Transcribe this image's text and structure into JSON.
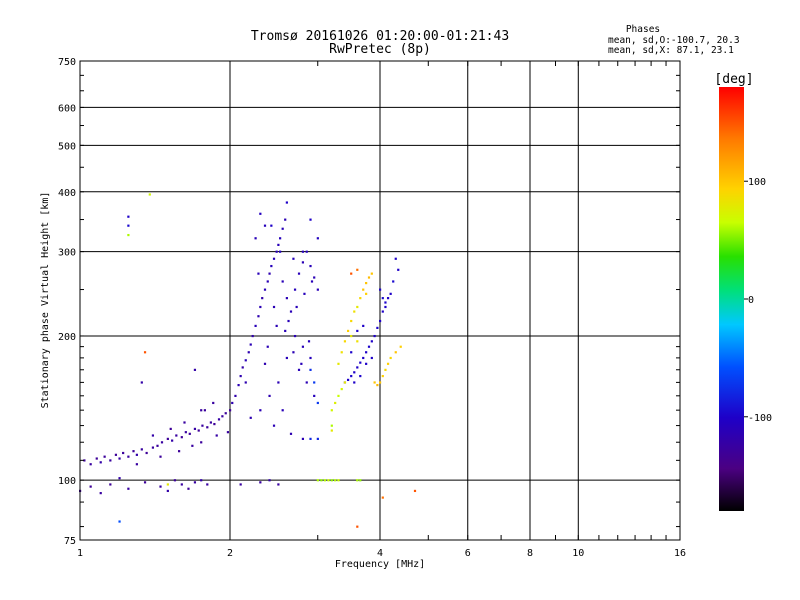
{
  "chart_data": {
    "type": "scatter",
    "title": "Tromsø 20161026 01:20:00-01:21:43",
    "subtitle": "RwPretec (8p)",
    "info": {
      "heading": "Phases",
      "line1": "mean, sd,O:-100.7, 20.3",
      "line2": "mean, sd,X:  87.1, 23.1"
    },
    "xlabel": "Frequency [MHz]",
    "ylabel": "Stationary phase Virtual Height [km]",
    "x_scale": "log",
    "y_scale": "log",
    "xlim": [
      1,
      16
    ],
    "ylim": [
      75,
      750
    ],
    "x_ticks": [
      {
        "value": 1,
        "label": "1"
      },
      {
        "value": 2,
        "label": "2"
      },
      {
        "value": 4,
        "label": "4"
      },
      {
        "value": 6,
        "label": "6"
      },
      {
        "value": 8,
        "label": "8"
      },
      {
        "value": 10,
        "label": "10"
      },
      {
        "value": 16,
        "label": "16"
      }
    ],
    "y_ticks": [
      {
        "value": 75,
        "label": "75"
      },
      {
        "value": 100,
        "label": "100"
      },
      {
        "value": 200,
        "label": "200"
      },
      {
        "value": 300,
        "label": "300"
      },
      {
        "value": 400,
        "label": "400"
      },
      {
        "value": 500,
        "label": "500"
      },
      {
        "value": 600,
        "label": "600"
      },
      {
        "value": 750,
        "label": "750"
      }
    ],
    "grid": true,
    "colorbar": {
      "label": "[deg]",
      "range": [
        -180,
        180
      ],
      "ticks": [
        {
          "value": 100,
          "label": "100"
        },
        {
          "value": 0,
          "label": "0"
        },
        {
          "value": -100,
          "label": "-100"
        }
      ]
    },
    "series": [
      {
        "points": [
          [
            1.02,
            110,
            -130
          ],
          [
            1.05,
            108,
            -125
          ],
          [
            1.08,
            111,
            -130
          ],
          [
            1.1,
            109,
            -120
          ],
          [
            1.12,
            112,
            -128
          ],
          [
            1.15,
            110,
            -125
          ],
          [
            1.18,
            113,
            -130
          ],
          [
            1.2,
            111,
            -122
          ],
          [
            1.22,
            114,
            -128
          ],
          [
            1.25,
            112,
            -125
          ],
          [
            1.28,
            115,
            -130
          ],
          [
            1.3,
            113,
            -120
          ],
          [
            1.33,
            116,
            -125
          ],
          [
            1.36,
            114,
            -130
          ],
          [
            1.4,
            117,
            -125
          ],
          [
            1.43,
            118,
            -128
          ],
          [
            1.46,
            120,
            -125
          ],
          [
            1.5,
            122,
            -130
          ],
          [
            1.53,
            121,
            -120
          ],
          [
            1.56,
            124,
            -125
          ],
          [
            1.6,
            123,
            -130
          ],
          [
            1.63,
            126,
            -125
          ],
          [
            1.66,
            125,
            -128
          ],
          [
            1.7,
            128,
            -122
          ],
          [
            1.73,
            127,
            -130
          ],
          [
            1.76,
            130,
            -125
          ],
          [
            1.8,
            129,
            -128
          ],
          [
            1.83,
            132,
            -125
          ],
          [
            1.86,
            131,
            -130
          ],
          [
            1.9,
            134,
            -122
          ],
          [
            1.93,
            136,
            -125
          ],
          [
            1.96,
            138,
            -128
          ],
          [
            2.0,
            140,
            -130
          ],
          [
            1.3,
            108,
            -125
          ],
          [
            1.45,
            112,
            -128
          ],
          [
            1.58,
            115,
            -130
          ],
          [
            1.68,
            118,
            -125
          ],
          [
            1.75,
            120,
            -128
          ],
          [
            1.88,
            124,
            -122
          ],
          [
            1.98,
            126,
            -125
          ],
          [
            1.62,
            132,
            -125
          ],
          [
            1.78,
            140,
            -128
          ],
          [
            1.52,
            128,
            -130
          ],
          [
            1.85,
            145,
            -125
          ],
          [
            1.4,
            124,
            -120
          ]
        ]
      },
      {
        "points": [
          [
            2.02,
            145,
            -115
          ],
          [
            2.05,
            150,
            -118
          ],
          [
            2.08,
            158,
            -112
          ],
          [
            2.1,
            165,
            -115
          ],
          [
            2.12,
            172,
            -120
          ],
          [
            2.15,
            178,
            -110
          ],
          [
            2.18,
            185,
            -115
          ],
          [
            2.2,
            192,
            -112
          ],
          [
            2.22,
            200,
            -118
          ],
          [
            2.25,
            210,
            -110
          ],
          [
            2.28,
            220,
            -115
          ],
          [
            2.3,
            230,
            -112
          ],
          [
            2.32,
            240,
            -118
          ],
          [
            2.35,
            250,
            -110
          ],
          [
            2.38,
            260,
            -112
          ],
          [
            2.4,
            270,
            -115
          ],
          [
            2.42,
            280,
            -108
          ],
          [
            2.45,
            290,
            -110
          ],
          [
            2.48,
            300,
            -112
          ],
          [
            2.5,
            310,
            -110
          ],
          [
            2.52,
            320,
            -108
          ],
          [
            2.55,
            335,
            -110
          ],
          [
            2.58,
            350,
            -112
          ],
          [
            2.6,
            380,
            -100
          ],
          [
            2.3,
            360,
            -105
          ],
          [
            2.25,
            320,
            -110
          ],
          [
            2.35,
            340,
            -108
          ],
          [
            2.45,
            230,
            -112
          ],
          [
            2.55,
            260,
            -110
          ],
          [
            2.6,
            240,
            -112
          ],
          [
            2.65,
            225,
            -110
          ],
          [
            2.7,
            250,
            -108
          ],
          [
            2.75,
            270,
            -110
          ],
          [
            2.8,
            285,
            -112
          ],
          [
            2.85,
            300,
            -108
          ],
          [
            2.9,
            280,
            -110
          ],
          [
            2.95,
            265,
            -112
          ],
          [
            3.0,
            250,
            -110
          ],
          [
            2.7,
            200,
            -112
          ],
          [
            2.8,
            190,
            -110
          ],
          [
            2.9,
            180,
            -108
          ],
          [
            2.75,
            170,
            -110
          ],
          [
            2.85,
            160,
            -112
          ],
          [
            2.95,
            150,
            -108
          ],
          [
            3.0,
            145,
            -70
          ],
          [
            2.95,
            160,
            -70
          ],
          [
            2.9,
            170,
            -75
          ],
          [
            2.6,
            180,
            -110
          ],
          [
            2.5,
            160,
            -112
          ],
          [
            2.4,
            150,
            -115
          ],
          [
            2.3,
            140,
            -112
          ],
          [
            2.2,
            135,
            -115
          ],
          [
            2.45,
            130,
            -112
          ],
          [
            2.65,
            125,
            -115
          ],
          [
            2.8,
            122,
            -112
          ],
          [
            2.9,
            122,
            -80
          ],
          [
            3.0,
            122,
            -80
          ],
          [
            2.55,
            140,
            -110
          ],
          [
            2.35,
            175,
            -115
          ],
          [
            2.15,
            160,
            -115
          ],
          [
            2.48,
            210,
            -112
          ],
          [
            2.62,
            215,
            -110
          ],
          [
            2.72,
            230,
            -110
          ],
          [
            2.82,
            245,
            -108
          ],
          [
            2.92,
            260,
            -110
          ],
          [
            2.38,
            190,
            -112
          ],
          [
            2.58,
            205,
            -110
          ],
          [
            2.68,
            185,
            -112
          ],
          [
            2.78,
            175,
            -110
          ],
          [
            2.88,
            195,
            -108
          ],
          [
            2.42,
            340,
            -100
          ],
          [
            2.52,
            300,
            -105
          ],
          [
            2.28,
            270,
            -110
          ],
          [
            2.68,
            290,
            -108
          ],
          [
            3.0,
            320,
            -105
          ]
        ]
      },
      {
        "points": [
          [
            3.4,
            160,
            -100
          ],
          [
            3.45,
            162,
            -100
          ],
          [
            3.5,
            165,
            -98
          ],
          [
            3.55,
            168,
            -100
          ],
          [
            3.6,
            172,
            -100
          ],
          [
            3.65,
            176,
            -98
          ],
          [
            3.7,
            180,
            -100
          ],
          [
            3.75,
            185,
            -100
          ],
          [
            3.8,
            190,
            -98
          ],
          [
            3.85,
            195,
            -100
          ],
          [
            3.9,
            200,
            -100
          ],
          [
            3.95,
            208,
            -98
          ],
          [
            4.0,
            215,
            -100
          ],
          [
            4.05,
            225,
            -100
          ],
          [
            4.1,
            235,
            -98
          ],
          [
            4.15,
            240,
            -100
          ],
          [
            4.2,
            245,
            -100
          ],
          [
            4.0,
            250,
            -98
          ],
          [
            4.05,
            240,
            -95
          ],
          [
            4.1,
            230,
            -100
          ],
          [
            3.6,
            205,
            -98
          ],
          [
            3.7,
            210,
            -100
          ],
          [
            3.5,
            185,
            -98
          ],
          [
            4.25,
            260,
            -95
          ],
          [
            4.35,
            275,
            -100
          ],
          [
            4.3,
            290,
            -100
          ],
          [
            3.55,
            160,
            -100
          ],
          [
            3.65,
            165,
            -98
          ],
          [
            3.75,
            175,
            -100
          ],
          [
            3.85,
            180,
            -100
          ]
        ]
      },
      {
        "points": [
          [
            3.2,
            140,
            70
          ],
          [
            3.25,
            145,
            75
          ],
          [
            3.3,
            150,
            65
          ],
          [
            3.35,
            155,
            70
          ],
          [
            3.4,
            160,
            80
          ],
          [
            3.3,
            175,
            80
          ],
          [
            3.35,
            185,
            85
          ],
          [
            3.4,
            195,
            90
          ],
          [
            3.45,
            205,
            95
          ],
          [
            3.5,
            215,
            90
          ],
          [
            3.55,
            225,
            85
          ],
          [
            3.6,
            230,
            80
          ],
          [
            3.65,
            240,
            90
          ],
          [
            3.7,
            250,
            100
          ],
          [
            3.75,
            258,
            100
          ],
          [
            3.8,
            265,
            105
          ],
          [
            3.85,
            270,
            100
          ],
          [
            3.75,
            245,
            95
          ],
          [
            3.9,
            160,
            100
          ],
          [
            3.95,
            158,
            105
          ],
          [
            4.0,
            160,
            100
          ],
          [
            4.05,
            165,
            95
          ],
          [
            4.1,
            170,
            90
          ],
          [
            4.15,
            175,
            95
          ],
          [
            4.2,
            180,
            90
          ],
          [
            4.3,
            185,
            100
          ],
          [
            4.4,
            190,
            95
          ],
          [
            3.5,
            200,
            80
          ],
          [
            3.6,
            195,
            85
          ],
          [
            3.2,
            130,
            60
          ]
        ]
      },
      {
        "points": [
          [
            3.0,
            100,
            60
          ],
          [
            3.05,
            100,
            55
          ],
          [
            3.1,
            100,
            60
          ],
          [
            3.15,
            100,
            65
          ],
          [
            3.2,
            100,
            55
          ],
          [
            3.25,
            100,
            60
          ],
          [
            3.3,
            100,
            65
          ],
          [
            3.6,
            100,
            60
          ],
          [
            3.65,
            100,
            55
          ]
        ]
      },
      {
        "points": [
          [
            1.0,
            95,
            -130
          ],
          [
            1.05,
            97,
            -130
          ],
          [
            1.1,
            94,
            -125
          ],
          [
            1.15,
            98,
            -130
          ],
          [
            1.25,
            96,
            -125
          ],
          [
            1.35,
            99,
            -130
          ],
          [
            1.45,
            97,
            -125
          ],
          [
            1.5,
            95,
            -120
          ],
          [
            1.55,
            100,
            -130
          ],
          [
            1.6,
            98,
            -125
          ],
          [
            1.65,
            96,
            -130
          ],
          [
            1.7,
            99,
            -125
          ],
          [
            1.75,
            100,
            -120
          ],
          [
            1.8,
            98,
            -125
          ],
          [
            2.1,
            98,
            -125
          ],
          [
            2.3,
            99,
            -125
          ],
          [
            2.4,
            100,
            -120
          ],
          [
            2.5,
            98,
            -125
          ],
          [
            1.2,
            101,
            -120
          ]
        ]
      },
      {
        "points": [
          [
            1.25,
            355,
            -100
          ],
          [
            1.25,
            340,
            -95
          ],
          [
            1.25,
            325,
            60
          ],
          [
            1.38,
            395,
            70
          ],
          [
            1.35,
            185,
            150
          ],
          [
            1.33,
            160,
            -120
          ],
          [
            1.5,
            98,
            80
          ],
          [
            1.2,
            82,
            -60
          ],
          [
            1.7,
            170,
            -120
          ],
          [
            1.75,
            140,
            -125
          ],
          [
            3.2,
            127,
            80
          ],
          [
            3.6,
            80,
            150
          ],
          [
            4.05,
            92,
            140
          ],
          [
            4.7,
            95,
            150
          ],
          [
            2.9,
            350,
            -100
          ],
          [
            2.8,
            300,
            -110
          ],
          [
            3.5,
            270,
            150
          ],
          [
            3.6,
            275,
            140
          ]
        ]
      }
    ]
  }
}
